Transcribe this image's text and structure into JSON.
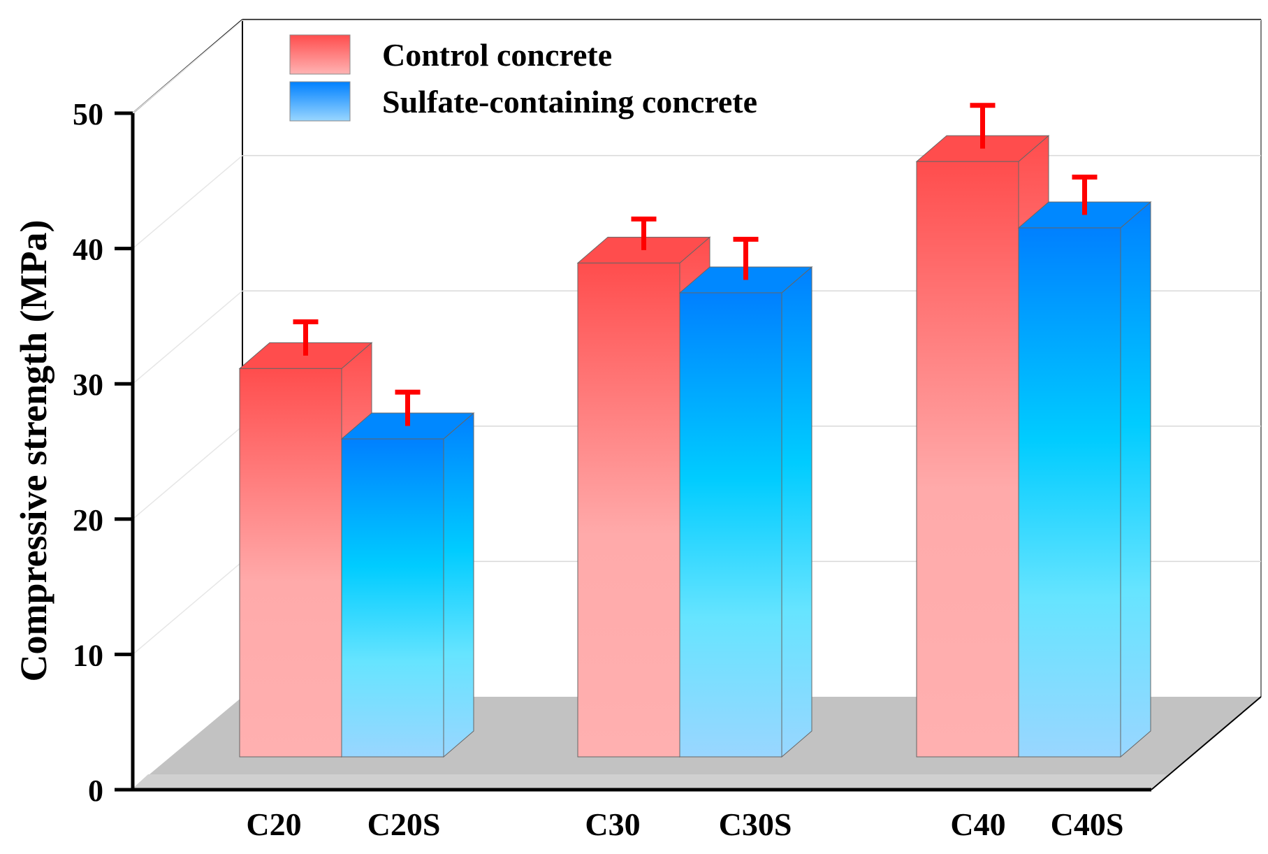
{
  "chart_data": {
    "type": "bar",
    "style": "3d",
    "title": "",
    "xlabel": "",
    "ylabel": "Compressive strength (MPa)",
    "ylim": [
      0,
      50
    ],
    "yticks": [
      0,
      10,
      20,
      30,
      40,
      50
    ],
    "grid": true,
    "legend_position": "top-left",
    "categories": [
      "C20",
      "C20S",
      "C30",
      "C30S",
      "C40",
      "C40S"
    ],
    "series": [
      {
        "name": "Control concrete",
        "color": "#ff4d4d",
        "color_light": "#ffb3b3",
        "points": [
          {
            "category": "C20",
            "value": 28.7,
            "error": 2.5
          },
          {
            "category": "C30",
            "value": 36.5,
            "error": 2.3
          },
          {
            "category": "C40",
            "value": 44.0,
            "error": 3.2
          }
        ]
      },
      {
        "name": "Sulfate-containing concrete",
        "color": "#0088ff",
        "color_light": "#99d6ff",
        "points": [
          {
            "category": "C20S",
            "value": 23.5,
            "error": 2.5
          },
          {
            "category": "C30S",
            "value": 34.3,
            "error": 3.0
          },
          {
            "category": "C40S",
            "value": 39.1,
            "error": 2.8
          }
        ]
      }
    ]
  }
}
